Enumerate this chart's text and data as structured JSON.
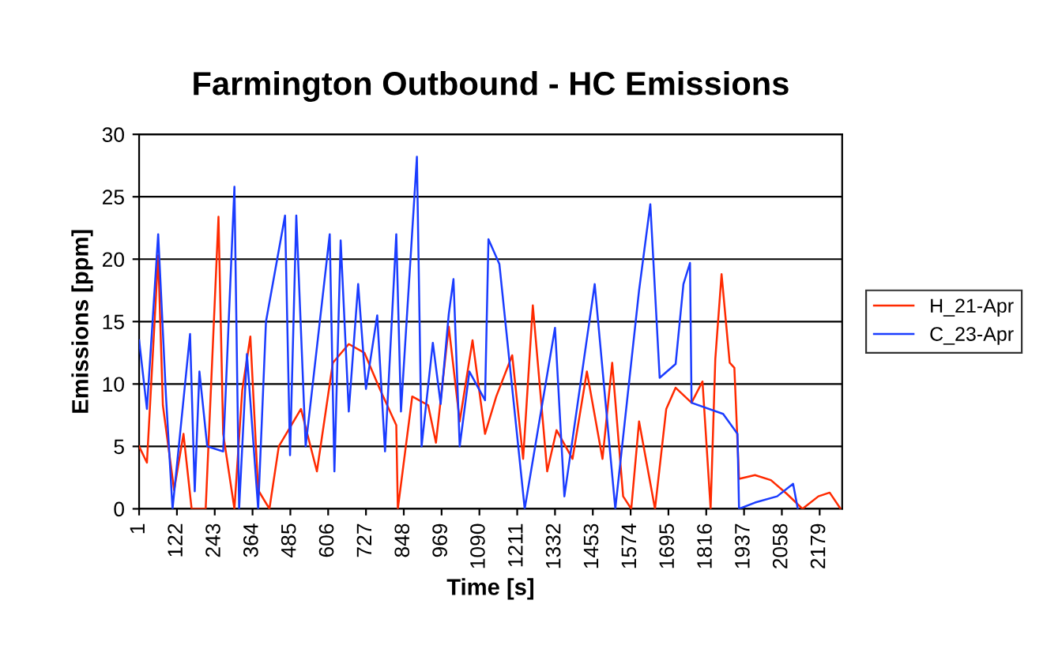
{
  "chart_data": {
    "type": "line",
    "title": "Farmington Outbound - HC Emissions",
    "xlabel": "Time [s]",
    "ylabel": "Emissions [ppm]",
    "xlim": [
      1,
      2251
    ],
    "xticks": [
      1,
      122,
      243,
      364,
      485,
      606,
      727,
      848,
      969,
      1090,
      1211,
      1332,
      1453,
      1574,
      1695,
      1816,
      1937,
      2058,
      2179
    ],
    "ylim": [
      0,
      30
    ],
    "yticks": [
      0,
      5,
      10,
      15,
      20,
      25,
      30
    ],
    "grid": "y",
    "legend": "right",
    "marker": "none",
    "line_style": "solid",
    "series": [
      {
        "name": "H_21-Apr",
        "color": "#ff2a00",
        "x": [
          1,
          26,
          62,
          77,
          113,
          143,
          169,
          214,
          255,
          270,
          306,
          331,
          357,
          382,
          418,
          448,
          519,
          570,
          621,
          672,
          722,
          773,
          824,
          829,
          875,
          926,
          951,
          992,
          1027,
          1068,
          1108,
          1144,
          1195,
          1230,
          1261,
          1307,
          1337,
          1388,
          1434,
          1484,
          1515,
          1550,
          1576,
          1601,
          1652,
          1688,
          1718,
          1769,
          1804,
          1830,
          1845,
          1865,
          1891,
          1906,
          1921,
          1972,
          2023,
          2074,
          2124,
          2175,
          2211,
          2246
        ],
        "values": [
          5,
          3.7,
          20.3,
          8.3,
          1.5,
          6,
          0,
          0,
          23.4,
          6,
          0,
          9.5,
          13.8,
          1.5,
          0,
          5,
          8,
          3,
          11.7,
          13.2,
          12.5,
          9.5,
          6.7,
          0,
          9,
          8.3,
          5.3,
          14.6,
          7,
          13.5,
          6,
          9,
          12.3,
          4,
          16.3,
          3,
          6.3,
          4,
          11,
          4,
          11.7,
          1,
          0,
          7,
          0,
          8,
          9.7,
          8.5,
          10.2,
          0,
          12,
          18.8,
          11.7,
          11.3,
          2.4,
          2.7,
          2.3,
          1.2,
          0,
          1,
          1.3,
          0
        ]
      },
      {
        "name": "C_23-Apr",
        "color": "#1a3cff",
        "x": [
          1,
          26,
          62,
          87,
          108,
          164,
          179,
          194,
          219,
          270,
          306,
          321,
          346,
          382,
          407,
          468,
          484,
          504,
          534,
          611,
          626,
          646,
          672,
          702,
          727,
          763,
          788,
          824,
          839,
          890,
          905,
          941,
          966,
          992,
          1007,
          1027,
          1058,
          1108,
          1119,
          1154,
          1235,
          1332,
          1362,
          1459,
          1525,
          1601,
          1637,
          1667,
          1718,
          1743,
          1764,
          1769,
          1870,
          1916,
          1921,
          1972,
          2043,
          2094,
          2109
        ],
        "values": [
          13.5,
          8,
          22,
          9,
          0,
          14,
          1.4,
          11,
          5,
          4.6,
          25.8,
          0,
          12.4,
          0,
          15,
          23.5,
          4.3,
          23.5,
          5,
          22,
          3,
          21.5,
          7.8,
          18,
          9.6,
          15.5,
          4.6,
          22,
          7.8,
          28.2,
          5,
          13.3,
          8.4,
          15.6,
          18.4,
          5,
          11,
          8.7,
          21.6,
          19.6,
          0,
          14.5,
          1,
          18,
          0,
          17.5,
          24.4,
          10.5,
          11.6,
          18,
          19.7,
          8.5,
          7.6,
          6,
          0,
          0.5,
          1,
          2,
          0
        ]
      }
    ]
  }
}
